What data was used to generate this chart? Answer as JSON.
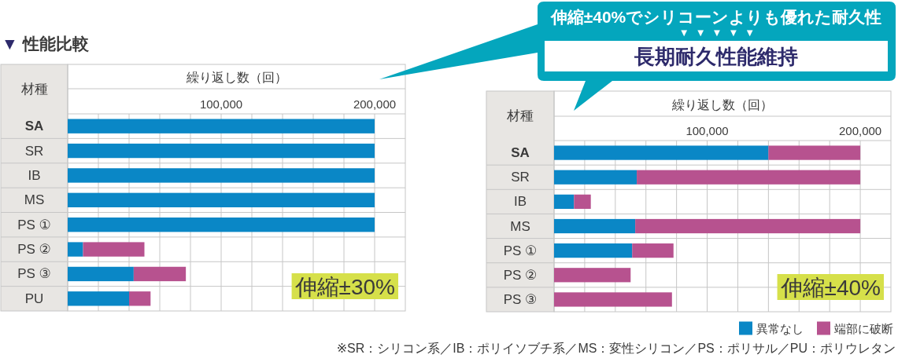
{
  "chart_data": [
    {
      "type": "bar",
      "orientation": "horizontal",
      "stacked": true,
      "title": "▼ 性能比較",
      "xlabel": "繰り返し数（回）",
      "ylabel": "材種",
      "categories": [
        "SA",
        "SR",
        "IB",
        "MS",
        "PS ①",
        "PS ②",
        "PS ③",
        "PU"
      ],
      "series": [
        {
          "color": "#0a87c6",
          "values": [
            200000,
            200000,
            200000,
            200000,
            200000,
            10000,
            43000,
            40000
          ]
        },
        {
          "color": "#b7528f",
          "values": [
            0,
            0,
            0,
            0,
            0,
            40000,
            34000,
            14000
          ]
        }
      ],
      "xlim": [
        0,
        220000
      ],
      "xticks": [
        {
          "value": 20000,
          "label": null
        },
        {
          "value": 40000,
          "label": null
        },
        {
          "value": 60000,
          "label": null
        },
        {
          "value": 80000,
          "label": null
        },
        {
          "value": 100000,
          "label": "100,000"
        },
        {
          "value": 120000,
          "label": null
        },
        {
          "value": 140000,
          "label": null
        },
        {
          "value": 160000,
          "label": null
        },
        {
          "value": 180000,
          "label": null
        },
        {
          "value": 200000,
          "label": "200,000"
        }
      ],
      "grid": "x",
      "annotations": [
        "伸縮±30%"
      ]
    },
    {
      "type": "bar",
      "orientation": "horizontal",
      "stacked": true,
      "xlabel": "繰り返し数（回）",
      "ylabel": "材種",
      "categories": [
        "SA",
        "SR",
        "IB",
        "MS",
        "PS ①",
        "PS ②",
        "PS ③"
      ],
      "series": [
        {
          "name": "異常なし",
          "color": "#0a87c6",
          "values": [
            140000,
            54000,
            13000,
            53000,
            51000,
            0,
            0
          ]
        },
        {
          "name": "端部に破断",
          "color": "#b7528f",
          "values": [
            60000,
            146000,
            11000,
            147000,
            27000,
            50000,
            77000
          ]
        }
      ],
      "xlim": [
        0,
        220000
      ],
      "xticks": [
        {
          "value": 20000,
          "label": null
        },
        {
          "value": 40000,
          "label": null
        },
        {
          "value": 60000,
          "label": null
        },
        {
          "value": 80000,
          "label": null
        },
        {
          "value": 100000,
          "label": "100,000"
        },
        {
          "value": 120000,
          "label": null
        },
        {
          "value": 140000,
          "label": null
        },
        {
          "value": 160000,
          "label": null
        },
        {
          "value": 180000,
          "label": null
        },
        {
          "value": 200000,
          "label": "200,000"
        }
      ],
      "grid": "x",
      "legend": "bottom right",
      "annotations": [
        "伸縮±40%",
        "伸縮±40%でシリコーンよりも優れた耐久性",
        "▼▼▼▼▼",
        "長期耐久性能維持",
        "※SR：シリコン系／IB：ポリイソブチ系／MS：変性シリコン／PS：ポリサル／PU：ポリウレタン"
      ]
    }
  ]
}
